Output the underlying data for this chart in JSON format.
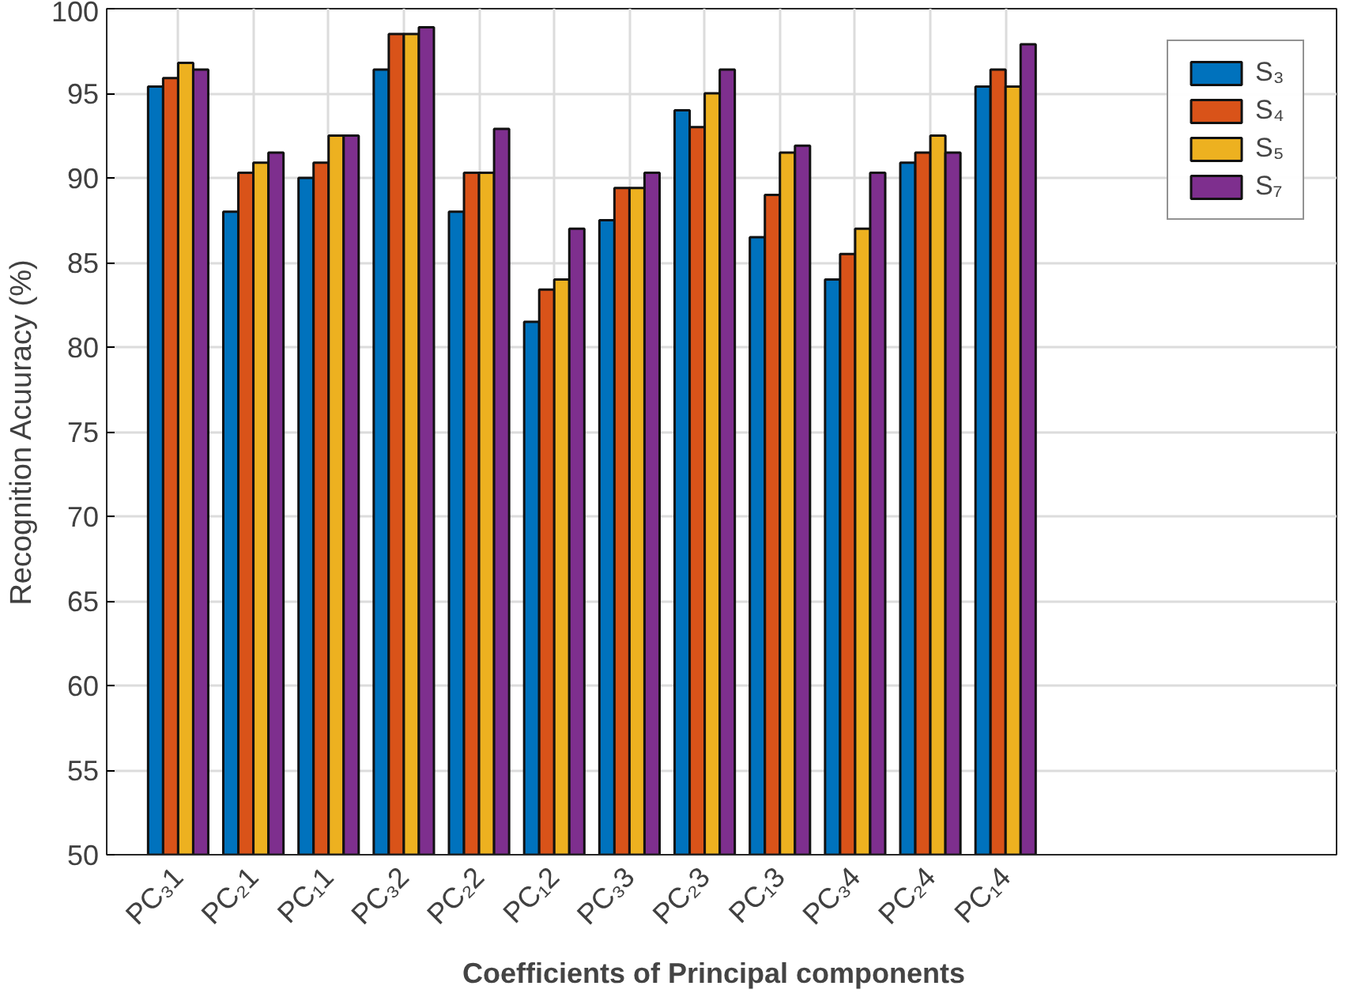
{
  "chart_data": {
    "type": "bar",
    "xlabel": "Coefficients  of Principal  components",
    "ylabel": "Recognition Acuuracy (%)",
    "categories": [
      "PC₃1",
      "PC₂1",
      "PC₁1",
      "PC₃2",
      "PC₂2",
      "PC₁2",
      "PC₃3",
      "PC₂3",
      "PC₁3",
      "PC₃4",
      "PC₂4",
      "PC₁4"
    ],
    "series": [
      {
        "name": "S₃",
        "color": "#0072bd",
        "values": [
          95.4,
          88.0,
          90.0,
          96.4,
          88.0,
          81.5,
          87.5,
          94.0,
          86.5,
          84.0,
          90.9,
          95.4
        ]
      },
      {
        "name": "S₄",
        "color": "#d95319",
        "values": [
          95.9,
          90.3,
          90.9,
          98.5,
          90.3,
          83.4,
          89.4,
          93.0,
          89.0,
          85.5,
          91.5,
          96.4
        ]
      },
      {
        "name": "S₅",
        "color": "#edb120",
        "values": [
          96.8,
          90.9,
          92.5,
          98.5,
          90.3,
          84.0,
          89.4,
          95.0,
          91.5,
          87.0,
          92.5,
          95.4
        ]
      },
      {
        "name": "S₇",
        "color": "#7e2f8e",
        "values": [
          96.4,
          91.5,
          92.5,
          98.9,
          92.9,
          87.0,
          90.3,
          96.4,
          91.9,
          90.3,
          91.5,
          97.9
        ]
      }
    ],
    "ylim": [
      50,
      100
    ],
    "yticks": [
      50,
      55,
      60,
      65,
      70,
      75,
      80,
      85,
      90,
      95,
      100
    ],
    "grid": true,
    "legend": "top right"
  }
}
